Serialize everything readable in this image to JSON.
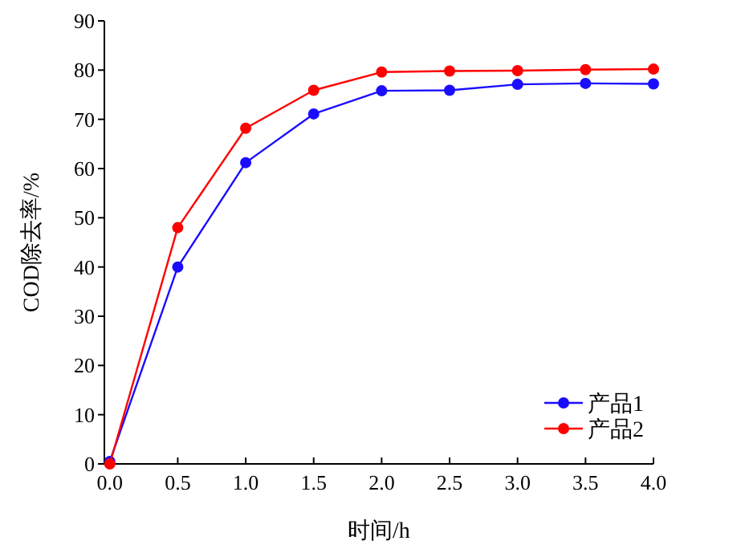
{
  "chart_data": {
    "type": "line",
    "xlabel": "时间/h",
    "ylabel": "COD除去率/%",
    "x": [
      0,
      0.5,
      1,
      1.5,
      2,
      2.5,
      3,
      3.5,
      4
    ],
    "series": [
      {
        "name": "产品1",
        "color": "#1a0dff",
        "values": [
          0.5,
          40,
          61.2,
          71.1,
          75.8,
          75.9,
          77.1,
          77.3,
          77.2
        ]
      },
      {
        "name": "产品2",
        "color": "#ff0000",
        "values": [
          0,
          48,
          68.2,
          75.9,
          79.6,
          79.8,
          79.9,
          80.1,
          80.2
        ]
      }
    ],
    "xlim": [
      -0.04,
      4
    ],
    "xticks": [
      {
        "value": 0,
        "label": "0.0"
      },
      {
        "value": 0.5,
        "label": "0.5"
      },
      {
        "value": 1,
        "label": "1.0"
      },
      {
        "value": 1.5,
        "label": "1.5"
      },
      {
        "value": 2,
        "label": "2.0"
      },
      {
        "value": 2.5,
        "label": "2.5"
      },
      {
        "value": 3,
        "label": "3.0"
      },
      {
        "value": 3.5,
        "label": "3.5"
      },
      {
        "value": 4,
        "label": "4.0"
      }
    ],
    "ylim": [
      0,
      90
    ],
    "yticks": [
      0,
      10,
      20,
      30,
      40,
      50,
      60,
      70,
      80,
      90
    ],
    "marker": "circle",
    "legend": "bottom right",
    "grid": false
  }
}
